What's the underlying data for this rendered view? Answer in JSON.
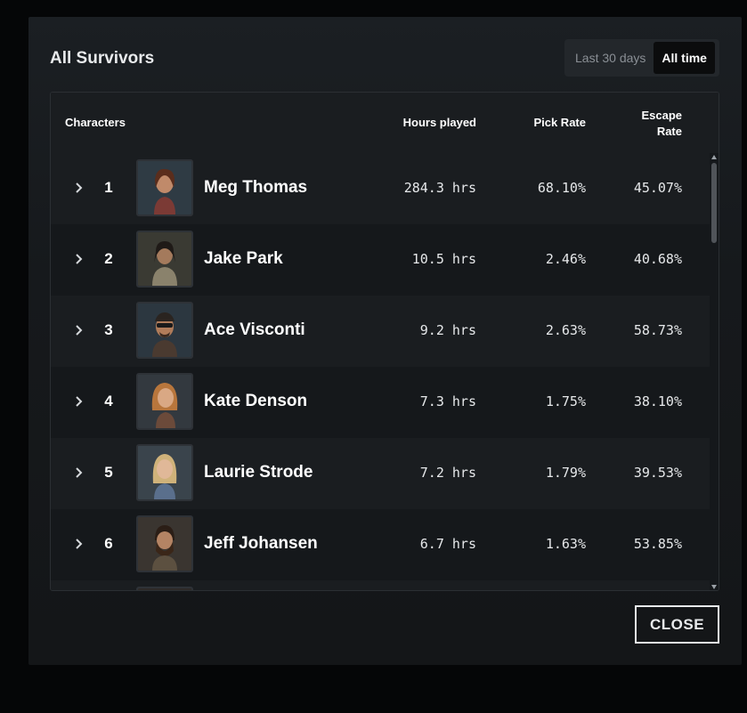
{
  "modal": {
    "title": "All Survivors",
    "range_options": [
      "Last 30 days",
      "All time"
    ],
    "active_range": "All time",
    "close_label": "CLOSE"
  },
  "table": {
    "columns": {
      "characters": "Characters",
      "hours": "Hours played",
      "pick": "Pick Rate",
      "escape_line1": "Escape",
      "escape_line2": "Rate"
    },
    "rows": [
      {
        "rank": "1",
        "name": "Meg Thomas",
        "hours": "284.3 hrs",
        "pick": "68.10%",
        "escape": "45.07%",
        "portrait": "meg-thomas-portrait"
      },
      {
        "rank": "2",
        "name": "Jake Park",
        "hours": "10.5 hrs",
        "pick": "2.46%",
        "escape": "40.68%",
        "portrait": "jake-park-portrait"
      },
      {
        "rank": "3",
        "name": "Ace Visconti",
        "hours": "9.2 hrs",
        "pick": "2.63%",
        "escape": "58.73%",
        "portrait": "ace-visconti-portrait"
      },
      {
        "rank": "4",
        "name": "Kate Denson",
        "hours": "7.3 hrs",
        "pick": "1.75%",
        "escape": "38.10%",
        "portrait": "kate-denson-portrait"
      },
      {
        "rank": "5",
        "name": "Laurie Strode",
        "hours": "7.2 hrs",
        "pick": "1.79%",
        "escape": "39.53%",
        "portrait": "laurie-strode-portrait"
      },
      {
        "rank": "6",
        "name": "Jeff Johansen",
        "hours": "6.7 hrs",
        "pick": "1.63%",
        "escape": "53.85%",
        "portrait": "jeff-johansen-portrait"
      }
    ]
  },
  "icons": {
    "expand": "chevron-right-icon"
  },
  "colors": {
    "modal_bg": "#1b1f23",
    "row_alt": "#1a1d20",
    "accent_text": "#ffffff"
  }
}
